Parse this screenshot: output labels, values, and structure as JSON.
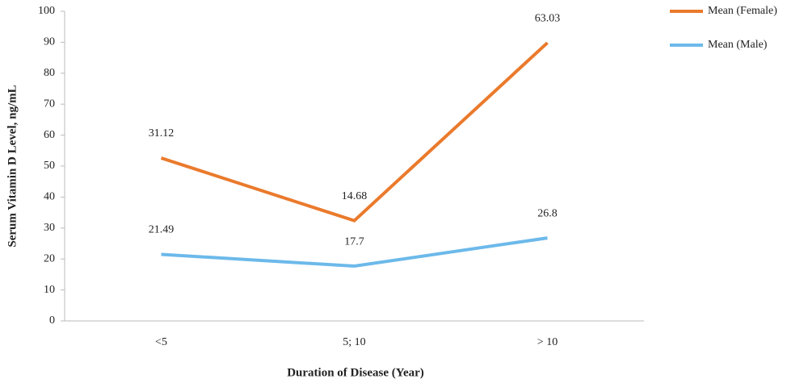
{
  "chart_data": {
    "type": "line",
    "stacked": true,
    "y_label": "Serum Vitamin D Level, ng/mL",
    "x_label": "Duration of Disease (Year)",
    "categories": [
      "<5",
      "5; 10",
      "> 10"
    ],
    "series": [
      {
        "name": "Mean (Female)",
        "color": "#ea7a2c",
        "values": [
          31.12,
          14.68,
          63.03
        ]
      },
      {
        "name": "Mean (Male)",
        "color": "#6cb9ea",
        "values": [
          21.49,
          17.7,
          26.8
        ]
      }
    ],
    "ylim": [
      0,
      100
    ],
    "yticks": [
      0,
      10,
      20,
      30,
      40,
      50,
      60,
      70,
      80,
      90,
      100
    ],
    "grid": false,
    "legend": "right"
  }
}
